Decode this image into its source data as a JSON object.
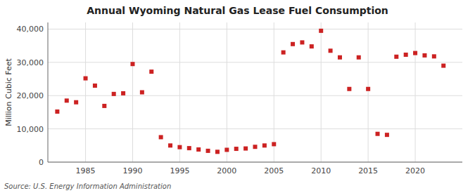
{
  "chart_data": {
    "type": "scatter",
    "title": "Annual Wyoming Natural Gas Lease Fuel Consumption",
    "ylabel": "Million Cubic Feet",
    "source": "Source: U.S. Energy Information Administration",
    "x": [
      1982,
      1983,
      1984,
      1985,
      1986,
      1987,
      1988,
      1989,
      1990,
      1991,
      1992,
      1993,
      1994,
      1995,
      1996,
      1997,
      1998,
      1999,
      2000,
      2001,
      2002,
      2003,
      2004,
      2005,
      2006,
      2007,
      2008,
      2009,
      2010,
      2011,
      2012,
      2013,
      2014,
      2015,
      2016,
      2017,
      2018,
      2019,
      2020,
      2021,
      2022,
      2023
    ],
    "values": [
      15200,
      18500,
      18000,
      25200,
      23000,
      16900,
      20500,
      20700,
      29500,
      21000,
      27200,
      7500,
      5000,
      4500,
      4200,
      3800,
      3400,
      3100,
      3700,
      4000,
      4100,
      4600,
      5000,
      5400,
      33000,
      35500,
      36000,
      34800,
      39500,
      33500,
      31500,
      22000,
      31500,
      22000,
      8500,
      8200,
      31700,
      32300,
      32800,
      32100,
      31800,
      29000
    ],
    "color": "#cc2222",
    "marker": "square",
    "xlim": [
      1981,
      2025
    ],
    "ylim": [
      0,
      42000
    ],
    "xticks": [
      1985,
      1990,
      1995,
      2000,
      2005,
      2010,
      2015,
      2020
    ],
    "yticks": [
      0,
      {
        "value": 10000,
        "label": "10,000"
      },
      {
        "value": 20000,
        "label": "20,000"
      },
      {
        "value": 30000,
        "label": "30,000"
      },
      {
        "value": 40000,
        "label": "40,000"
      }
    ],
    "grid": true
  }
}
